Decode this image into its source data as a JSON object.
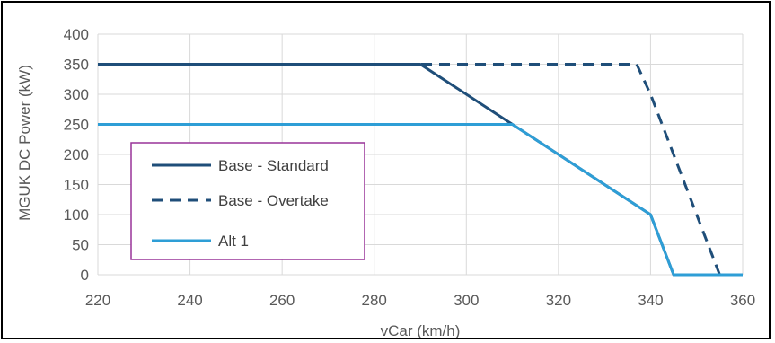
{
  "chart_data": {
    "type": "line",
    "title": "",
    "xlabel": "vCar (km/h)",
    "ylabel": "MGUK DC Power (kW)",
    "xlim": [
      220,
      360
    ],
    "ylim": [
      0,
      400
    ],
    "x_ticks": [
      220,
      240,
      260,
      280,
      300,
      320,
      340,
      360
    ],
    "y_ticks": [
      0,
      50,
      100,
      150,
      200,
      250,
      300,
      350,
      400
    ],
    "grid": true,
    "legend_position": "left",
    "series": [
      {
        "name": "Base - Standard",
        "color": "#1F4E79",
        "dash": "solid",
        "points": [
          [
            220,
            350
          ],
          [
            290,
            350
          ],
          [
            310,
            250
          ],
          [
            320,
            200
          ],
          [
            340,
            100
          ],
          [
            345,
            0
          ],
          [
            360,
            0
          ]
        ]
      },
      {
        "name": "Base - Overtake",
        "color": "#1F4E79",
        "dash": "dashed",
        "points": [
          [
            220,
            350
          ],
          [
            337,
            350
          ],
          [
            340,
            300
          ],
          [
            355,
            0
          ],
          [
            360,
            0
          ]
        ]
      },
      {
        "name": "Alt 1",
        "color": "#2E9ED6",
        "dash": "solid",
        "points": [
          [
            220,
            250
          ],
          [
            310,
            250
          ],
          [
            340,
            100
          ],
          [
            345,
            0
          ],
          [
            360,
            0
          ]
        ]
      }
    ]
  }
}
